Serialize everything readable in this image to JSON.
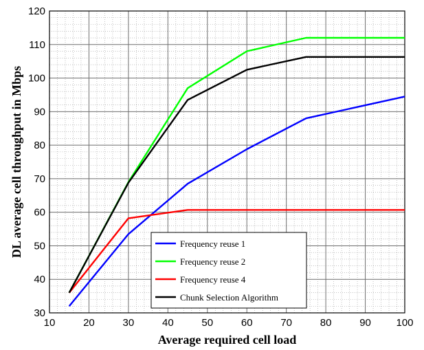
{
  "chart_data": {
    "type": "line",
    "xlabel": "Average required cell load",
    "ylabel": "DL average cell throughput in Mbps",
    "xlim": [
      10,
      100
    ],
    "ylim": [
      30,
      120
    ],
    "xticks": [
      10,
      20,
      30,
      40,
      50,
      60,
      70,
      80,
      90,
      100
    ],
    "yticks": [
      30,
      40,
      50,
      60,
      70,
      80,
      90,
      100,
      110,
      120
    ],
    "grid": true,
    "legend_position": "bottom-center",
    "x": [
      15,
      30,
      45,
      60,
      75,
      100
    ],
    "series": [
      {
        "name": "Frequency reuse 1",
        "color": "#0000ff",
        "values": [
          32,
          53.5,
          68.5,
          78.8,
          88,
          94.5
        ]
      },
      {
        "name": "Frequency reuse 2",
        "color": "#00ff00",
        "values": [
          36,
          69,
          97,
          108,
          112,
          112
        ]
      },
      {
        "name": "Frequency reuse 4",
        "color": "#ff0000",
        "values": [
          36,
          58.2,
          60.7,
          60.7,
          60.7,
          60.7
        ]
      },
      {
        "name": "Chunk Selection Algorithm",
        "color": "#000000",
        "values": [
          36,
          68.8,
          93.5,
          102.5,
          106.3,
          106.3
        ]
      }
    ]
  }
}
